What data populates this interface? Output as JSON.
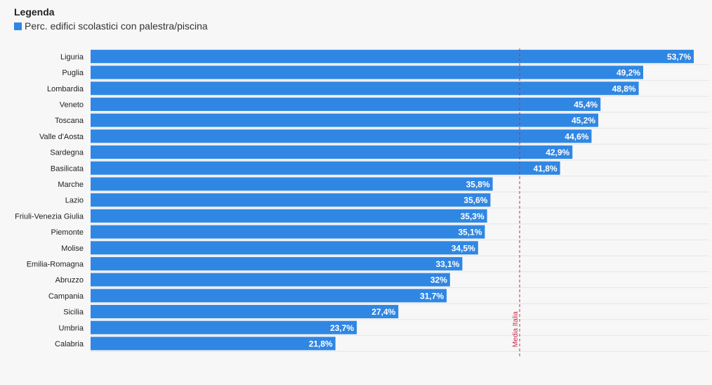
{
  "legend": {
    "title": "Legenda",
    "series_label": "Perc. edifici scolastici con palestra/piscina"
  },
  "colors": {
    "bar": "#3087e3",
    "average_line": "#c0304a",
    "row_separator": "#e6e6e6"
  },
  "chart_data": {
    "type": "bar",
    "orientation": "horizontal",
    "categories": [
      "Liguria",
      "Puglia",
      "Lombardia",
      "Veneto",
      "Toscana",
      "Valle d'Aosta",
      "Sardegna",
      "Basilicata",
      "Marche",
      "Lazio",
      "Friuli-Venezia Giulia",
      "Piemonte",
      "Molise",
      "Emilia-Romagna",
      "Abruzzo",
      "Campania",
      "Sicilia",
      "Umbria",
      "Calabria"
    ],
    "values": [
      53.7,
      49.2,
      48.8,
      45.4,
      45.2,
      44.6,
      42.9,
      41.8,
      35.8,
      35.6,
      35.3,
      35.1,
      34.5,
      33.1,
      32,
      31.7,
      27.4,
      23.7,
      21.8
    ],
    "value_labels": [
      "53,7%",
      "49,2%",
      "48,8%",
      "45,4%",
      "45,2%",
      "44,6%",
      "42,9%",
      "41,8%",
      "35,8%",
      "35,6%",
      "35,3%",
      "35,1%",
      "34,5%",
      "33,1%",
      "32%",
      "31,7%",
      "27,4%",
      "23,7%",
      "21,8%"
    ],
    "xlim": [
      0,
      53.7
    ],
    "reference_line": {
      "label": "Media Italia",
      "value": 38.2
    },
    "grid": false,
    "legend_position": "top-left"
  }
}
